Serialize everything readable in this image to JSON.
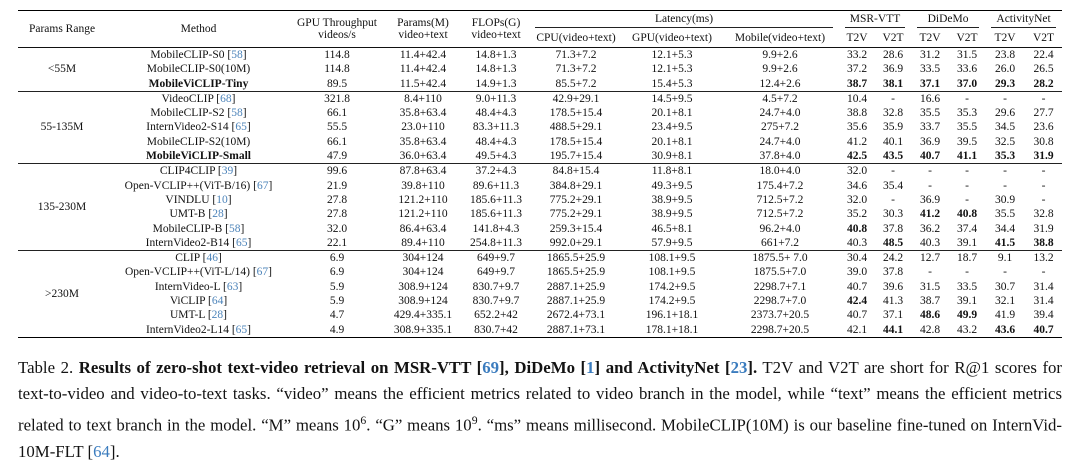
{
  "table": {
    "header": {
      "params_range": "Params Range",
      "method": "Method",
      "gpu_throughput_l1": "GPU Throughput",
      "gpu_throughput_l2": "videos/s",
      "params_l1": "Params(M)",
      "params_l2": "video+text",
      "flops_l1": "FLOPs(G)",
      "flops_l2": "video+text",
      "latency_group": "Latency(ms)",
      "latency_cols": [
        "CPU(video+text)",
        "GPU(video+text)",
        "Mobile(video+text)"
      ],
      "dataset_groups": [
        "MSR-VTT",
        "DiDeMo",
        "ActivityNet"
      ],
      "dataset_subcols": [
        "T2V",
        "V2T"
      ]
    },
    "groups": [
      {
        "range": "<55M",
        "rows": [
          {
            "method": "MobileCLIP-S0",
            "cite": "58",
            "bold_method": false,
            "cells": [
              "114.8",
              "11.4+42.4",
              "14.8+1.3",
              "71.3+7.2",
              "12.1+5.3",
              "9.9+2.6",
              "33.2",
              "28.6",
              "31.2",
              "31.5",
              "23.8",
              "22.4"
            ],
            "bold": []
          },
          {
            "method": "MobileCLIP-S0(10M)",
            "cite": "",
            "bold_method": false,
            "cells": [
              "114.8",
              "11.4+42.4",
              "14.8+1.3",
              "71.3+7.2",
              "12.1+5.3",
              "9.9+2.6",
              "37.2",
              "36.9",
              "33.5",
              "33.6",
              "26.0",
              "26.5"
            ],
            "bold": []
          },
          {
            "method": "MobileViCLIP-Tiny",
            "cite": "",
            "bold_method": true,
            "cells": [
              "89.5",
              "11.5+42.4",
              "14.9+1.3",
              "85.5+7.2",
              "15.4+5.3",
              "12.4+2.6",
              "38.7",
              "38.1",
              "37.1",
              "37.0",
              "29.3",
              "28.2"
            ],
            "bold": [
              6,
              7,
              8,
              9,
              10,
              11
            ]
          }
        ]
      },
      {
        "range": "55-135M",
        "rows": [
          {
            "method": "VideoCLIP",
            "cite": "68",
            "bold_method": false,
            "cells": [
              "321.8",
              "8.4+110",
              "9.0+11.3",
              "42.9+29.1",
              "14.5+9.5",
              "4.5+7.2",
              "10.4",
              "-",
              "16.6",
              "-",
              "-",
              "-"
            ],
            "bold": []
          },
          {
            "method": "MobileCLIP-S2",
            "cite": "58",
            "bold_method": false,
            "cells": [
              "66.1",
              "35.8+63.4",
              "48.4+4.3",
              "178.5+15.4",
              "20.1+8.1",
              "24.7+4.0",
              "38.8",
              "32.8",
              "35.5",
              "35.3",
              "29.6",
              "27.7"
            ],
            "bold": []
          },
          {
            "method": "InternVideo2-S14",
            "cite": "65",
            "bold_method": false,
            "cells": [
              "55.5",
              "23.0+110",
              "83.3+11.3",
              "488.5+29.1",
              "23.4+9.5",
              "275+7.2",
              "35.6",
              "35.9",
              "33.7",
              "35.5",
              "34.5",
              "23.6"
            ],
            "bold": []
          },
          {
            "method": "MobileCLIP-S2(10M)",
            "cite": "",
            "bold_method": false,
            "cells": [
              "66.1",
              "35.8+63.4",
              "48.4+4.3",
              "178.5+15.4",
              "20.1+8.1",
              "24.7+4.0",
              "41.2",
              "40.1",
              "36.9",
              "39.5",
              "32.5",
              "30.8"
            ],
            "bold": []
          },
          {
            "method": "MobileViCLIP-Small",
            "cite": "",
            "bold_method": true,
            "cells": [
              "47.9",
              "36.0+63.4",
              "49.5+4.3",
              "195.7+15.4",
              "30.9+8.1",
              "37.8+4.0",
              "42.5",
              "43.5",
              "40.7",
              "41.1",
              "35.3",
              "31.9"
            ],
            "bold": [
              6,
              7,
              8,
              9,
              10,
              11
            ]
          }
        ]
      },
      {
        "range": "135-230M",
        "rows": [
          {
            "method": "CLIP4CLIP",
            "cite": "39",
            "bold_method": false,
            "cells": [
              "99.6",
              "87.8+63.4",
              "37.2+4.3",
              "84.8+15.4",
              "11.8+8.1",
              "18.0+4.0",
              "32.0",
              "-",
              "-",
              "-",
              "-",
              "-"
            ],
            "bold": []
          },
          {
            "method": "Open-VCLIP++(ViT-B/16)",
            "cite": "67",
            "bold_method": false,
            "cells": [
              "21.9",
              "39.8+110",
              "89.6+11.3",
              "384.8+29.1",
              "49.3+9.5",
              "175.4+7.2",
              "34.6",
              "35.4",
              "-",
              "-",
              "-",
              "-"
            ],
            "bold": []
          },
          {
            "method": "VINDLU",
            "cite": "10",
            "bold_method": false,
            "cells": [
              "27.8",
              "121.2+110",
              "185.6+11.3",
              "775.2+29.1",
              "38.9+9.5",
              "712.5+7.2",
              "32.0",
              "-",
              "36.9",
              "-",
              "30.9",
              "-"
            ],
            "bold": []
          },
          {
            "method": "UMT-B",
            "cite": "28",
            "bold_method": false,
            "cells": [
              "27.8",
              "121.2+110",
              "185.6+11.3",
              "775.2+29.1",
              "38.9+9.5",
              "712.5+7.2",
              "35.2",
              "30.3",
              "41.2",
              "40.8",
              "35.5",
              "32.8"
            ],
            "bold": [
              8,
              9
            ]
          },
          {
            "method": "MobileCLIP-B",
            "cite": "58",
            "bold_method": false,
            "cells": [
              "32.0",
              "86.4+63.4",
              "141.8+4.3",
              "259.3+15.4",
              "46.5+8.1",
              "96.2+4.0",
              "40.8",
              "37.8",
              "36.2",
              "37.4",
              "34.4",
              "31.9"
            ],
            "bold": [
              6
            ]
          },
          {
            "method": "InternVideo2-B14",
            "cite": "65",
            "bold_method": false,
            "cells": [
              "22.1",
              "89.4+110",
              "254.8+11.3",
              "992.0+29.1",
              "57.9+9.5",
              "661+7.2",
              "40.3",
              "48.5",
              "40.3",
              "39.1",
              "41.5",
              "38.8"
            ],
            "bold": [
              7,
              10,
              11
            ]
          }
        ]
      },
      {
        "range": ">230M",
        "rows": [
          {
            "method": "CLIP",
            "cite": "46",
            "bold_method": false,
            "cells": [
              "6.9",
              "304+124",
              "649+9.7",
              "1865.5+25.9",
              "108.1+9.5",
              "1875.5+ 7.0",
              "30.4",
              "24.2",
              "12.7",
              "18.7",
              "9.1",
              "13.2"
            ],
            "bold": []
          },
          {
            "method": "Open-VCLIP++(ViT-L/14)",
            "cite": "67",
            "bold_method": false,
            "cells": [
              "6.9",
              "304+124",
              "649+9.7",
              "1865.5+25.9",
              "108.1+9.5",
              "1875.5+7.0",
              "39.0",
              "37.8",
              "-",
              "-",
              "-",
              "-"
            ],
            "bold": []
          },
          {
            "method": "InternVideo-L",
            "cite": "63",
            "bold_method": false,
            "cells": [
              "5.9",
              "308.9+124",
              "830.7+9.7",
              "2887.1+25.9",
              "174.2+9.5",
              "2298.7+7.1",
              "40.7",
              "39.6",
              "31.5",
              "33.5",
              "30.7",
              "31.4"
            ],
            "bold": []
          },
          {
            "method": "ViCLIP",
            "cite": "64",
            "bold_method": false,
            "cells": [
              "5.9",
              "308.9+124",
              "830.7+9.7",
              "2887.1+25.9",
              "174.2+9.5",
              "2298.7+7.0",
              "42.4",
              "41.3",
              "38.7",
              "39.1",
              "32.1",
              "31.4"
            ],
            "bold": [
              6
            ]
          },
          {
            "method": "UMT-L",
            "cite": "28",
            "bold_method": false,
            "cells": [
              "4.7",
              "429.4+335.1",
              "652.2+42",
              "2672.4+73.1",
              "196.1+18.1",
              "2373.7+20.5",
              "40.7",
              "37.1",
              "48.6",
              "49.9",
              "41.9",
              "39.4"
            ],
            "bold": [
              8,
              9
            ]
          },
          {
            "method": "InternVideo2-L14",
            "cite": "65",
            "bold_method": false,
            "cells": [
              "4.9",
              "308.9+335.1",
              "830.7+42",
              "2887.1+73.1",
              "178.1+18.1",
              "2298.7+20.5",
              "42.1",
              "44.1",
              "42.8",
              "43.2",
              "43.6",
              "40.7"
            ],
            "bold": [
              7,
              10,
              11
            ]
          }
        ]
      }
    ]
  },
  "caption": {
    "segments": [
      {
        "t": "Table 2. "
      },
      {
        "t": "Results of zero-shot text-video retrieval on MSR-VTT [",
        "b": 1
      },
      {
        "t": "69",
        "b": 1,
        "c": 1
      },
      {
        "t": "], DiDeMo [",
        "b": 1
      },
      {
        "t": "1",
        "b": 1,
        "c": 1
      },
      {
        "t": "] and ActivityNet [",
        "b": 1
      },
      {
        "t": "23",
        "b": 1,
        "c": 1
      },
      {
        "t": "].",
        "b": 1
      },
      {
        "t": " T2V and V2T are short for R@1 scores for text-to-video and video-to-text tasks. “video” means the efficient metrics related to video branch in the model, while “text” means the efficient metrics related to text branch in the model. “M” means 10"
      },
      {
        "t": "6",
        "s": 1
      },
      {
        "t": ". “G” means 10"
      },
      {
        "t": "9",
        "s": 1
      },
      {
        "t": ". “ms” means millisecond. MobileCLIP(10M) is our baseline fine-tuned on InternVid-10M-FLT ["
      },
      {
        "t": "64",
        "c": 1
      },
      {
        "t": "]."
      }
    ]
  }
}
